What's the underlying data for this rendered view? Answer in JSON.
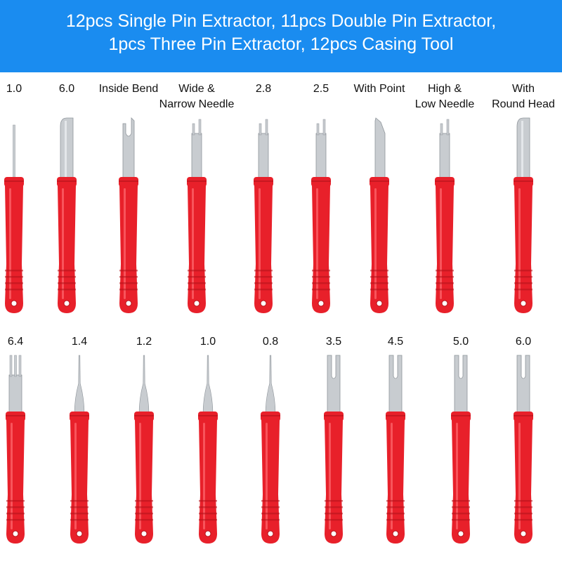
{
  "header": {
    "line1": "12pcs Single Pin Extractor, 11pcs Double Pin Extractor,",
    "line2": "1pcs Three Pin Extractor, 12pcs Casing Tool",
    "background": "#1a8cf0"
  },
  "colors": {
    "handle": "#e8202a",
    "handle_dark": "#b3121a",
    "metal": "#c8ccd0"
  },
  "rows": [
    {
      "tools": [
        {
          "label": [
            "1.0"
          ],
          "tip": "thin-pin"
        },
        {
          "label": [
            "6.0"
          ],
          "tip": "round-wide"
        },
        {
          "label": [
            "Inside Bend"
          ],
          "tip": "bend"
        },
        {
          "label": [
            "Wide &",
            "Narrow Needle"
          ],
          "tip": "double"
        },
        {
          "label": [
            "2.8"
          ],
          "tip": "double"
        },
        {
          "label": [
            "2.5"
          ],
          "tip": "double"
        },
        {
          "label": [
            "With Point"
          ],
          "tip": "point-blade"
        },
        {
          "label": [
            "High &",
            "Low Needle"
          ],
          "tip": "double"
        },
        {
          "label": [
            "With",
            "Round Head"
          ],
          "tip": "round-wide"
        }
      ]
    },
    {
      "tools": [
        {
          "label": [
            "6.4"
          ],
          "tip": "triple"
        },
        {
          "label": [
            "1.4"
          ],
          "tip": "needle"
        },
        {
          "label": [
            "1.2"
          ],
          "tip": "needle"
        },
        {
          "label": [
            "1.0"
          ],
          "tip": "needle"
        },
        {
          "label": [
            "0.8"
          ],
          "tip": "needle"
        },
        {
          "label": [
            "3.5"
          ],
          "tip": "fork"
        },
        {
          "label": [
            "4.5"
          ],
          "tip": "fork"
        },
        {
          "label": [
            "5.0"
          ],
          "tip": "fork"
        },
        {
          "label": [
            "6.0"
          ],
          "tip": "fork"
        }
      ]
    }
  ]
}
